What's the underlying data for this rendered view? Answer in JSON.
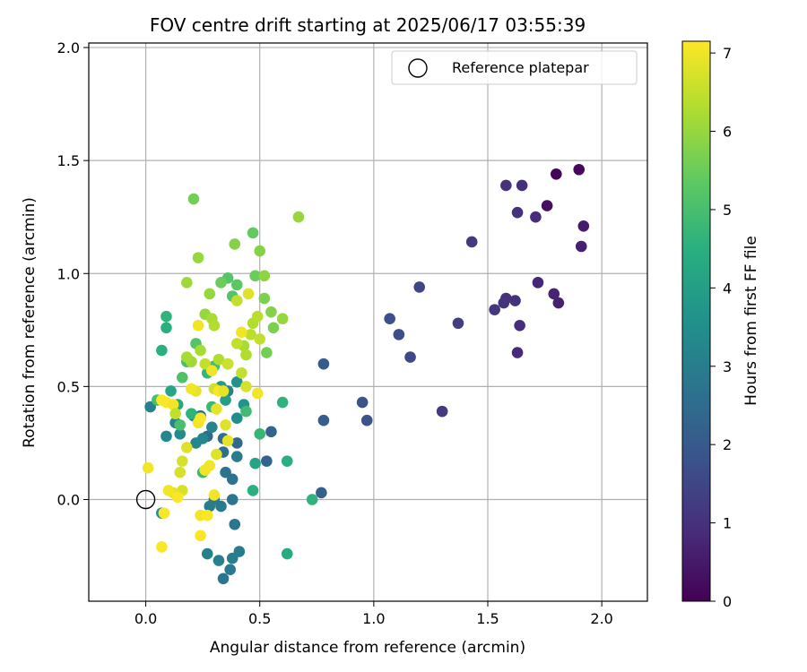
{
  "chart_data": {
    "type": "scatter",
    "title": "FOV centre drift starting at 2025/06/17 03:55:39",
    "xlabel": "Angular distance from reference (arcmin)",
    "ylabel": "Rotation from reference (arcmin)",
    "xlim": [
      -0.25,
      2.2
    ],
    "ylim": [
      -0.45,
      2.02
    ],
    "xticks": [
      0.0,
      0.5,
      1.0,
      1.5,
      2.0
    ],
    "yticks": [
      0.0,
      0.5,
      1.0,
      1.5,
      2.0
    ],
    "xtick_labels": [
      "0.0",
      "0.5",
      "1.0",
      "1.5",
      "2.0"
    ],
    "ytick_labels": [
      "0.0",
      "0.5",
      "1.0",
      "1.5",
      "2.0"
    ],
    "grid": true,
    "legend": {
      "placement": "top-right",
      "label": "Reference platepar"
    },
    "reference_point": {
      "x": 0.0,
      "y": 0.0
    },
    "colorbar": {
      "label": "Hours from first FF file",
      "range": [
        0,
        7.15
      ],
      "ticks": [
        0,
        1,
        2,
        3,
        4,
        5,
        6,
        7
      ],
      "tick_labels": [
        "0",
        "1",
        "2",
        "3",
        "4",
        "5",
        "6",
        "7"
      ],
      "colormap": "viridis"
    },
    "points": [
      [
        1.8,
        1.44,
        0.1
      ],
      [
        1.9,
        1.46,
        0.15
      ],
      [
        1.76,
        1.3,
        0.3
      ],
      [
        1.92,
        1.21,
        0.5
      ],
      [
        1.91,
        1.12,
        0.6
      ],
      [
        1.81,
        0.87,
        0.65
      ],
      [
        1.79,
        0.91,
        0.7
      ],
      [
        1.72,
        0.96,
        0.8
      ],
      [
        1.63,
        0.65,
        0.85
      ],
      [
        1.64,
        0.77,
        0.9
      ],
      [
        1.62,
        0.88,
        1.0
      ],
      [
        1.58,
        0.89,
        1.0
      ],
      [
        1.57,
        0.87,
        1.05
      ],
      [
        1.53,
        0.84,
        1.1
      ],
      [
        1.71,
        1.25,
        0.9
      ],
      [
        1.65,
        1.39,
        0.95
      ],
      [
        1.58,
        1.39,
        1.0
      ],
      [
        1.63,
        1.27,
        1.0
      ],
      [
        1.43,
        1.14,
        1.2
      ],
      [
        1.37,
        0.78,
        1.3
      ],
      [
        1.3,
        0.39,
        1.2
      ],
      [
        1.2,
        0.94,
        1.5
      ],
      [
        1.16,
        0.63,
        1.6
      ],
      [
        1.11,
        0.73,
        1.7
      ],
      [
        1.07,
        0.8,
        1.75
      ],
      [
        0.95,
        0.43,
        1.8
      ],
      [
        0.97,
        0.35,
        1.8
      ],
      [
        0.78,
        0.6,
        2.0
      ],
      [
        0.78,
        0.35,
        2.1
      ],
      [
        0.77,
        0.03,
        2.2
      ],
      [
        0.55,
        0.3,
        2.3
      ],
      [
        0.53,
        0.17,
        2.3
      ],
      [
        0.4,
        0.25,
        2.4
      ],
      [
        0.34,
        0.27,
        2.5
      ],
      [
        0.34,
        0.21,
        2.6
      ],
      [
        0.27,
        0.28,
        2.5
      ],
      [
        0.24,
        0.37,
        2.6
      ],
      [
        0.35,
        0.12,
        2.7
      ],
      [
        0.38,
        0.09,
        2.7
      ],
      [
        0.38,
        0.0,
        2.8
      ],
      [
        0.39,
        -0.11,
        2.8
      ],
      [
        0.33,
        -0.03,
        2.9
      ],
      [
        0.3,
        0.0,
        2.95
      ],
      [
        0.28,
        -0.03,
        3.0
      ],
      [
        0.34,
        -0.35,
        2.8
      ],
      [
        0.37,
        -0.31,
        2.9
      ],
      [
        0.41,
        -0.23,
        3.0
      ],
      [
        0.38,
        -0.26,
        3.0
      ],
      [
        0.32,
        -0.27,
        3.1
      ],
      [
        0.27,
        -0.24,
        3.1
      ],
      [
        0.4,
        0.19,
        3.0
      ],
      [
        0.36,
        0.48,
        3.1
      ],
      [
        0.29,
        0.32,
        3.2
      ],
      [
        0.25,
        0.27,
        3.3
      ],
      [
        0.22,
        0.25,
        3.3
      ],
      [
        0.13,
        0.34,
        3.2
      ],
      [
        0.09,
        0.28,
        3.3
      ],
      [
        0.15,
        0.29,
        3.4
      ],
      [
        0.02,
        0.41,
        3.1
      ],
      [
        0.07,
        -0.06,
        3.5
      ],
      [
        0.21,
        0.37,
        3.3
      ],
      [
        0.4,
        0.36,
        3.5
      ],
      [
        0.4,
        0.52,
        3.6
      ],
      [
        0.43,
        0.42,
        3.7
      ],
      [
        0.33,
        0.5,
        3.9
      ],
      [
        0.35,
        0.44,
        4.0
      ],
      [
        0.11,
        0.48,
        4.2
      ],
      [
        0.07,
        0.66,
        4.5
      ],
      [
        0.09,
        0.76,
        4.5
      ],
      [
        0.09,
        0.81,
        4.6
      ],
      [
        0.14,
        0.42,
        4.3
      ],
      [
        0.2,
        0.38,
        4.6
      ],
      [
        0.27,
        0.56,
        4.7
      ],
      [
        0.29,
        0.41,
        4.8
      ],
      [
        0.3,
        0.59,
        4.9
      ],
      [
        0.48,
        0.16,
        4.2
      ],
      [
        0.47,
        0.04,
        4.5
      ],
      [
        0.6,
        0.43,
        4.6
      ],
      [
        0.62,
        0.17,
        4.5
      ],
      [
        0.62,
        -0.24,
        4.4
      ],
      [
        0.73,
        0.0,
        4.6
      ],
      [
        0.5,
        0.29,
        4.7
      ],
      [
        0.44,
        0.39,
        4.9
      ],
      [
        0.25,
        0.12,
        4.8
      ],
      [
        0.15,
        0.33,
        5.0
      ],
      [
        0.05,
        0.44,
        5.0
      ],
      [
        0.18,
        0.61,
        5.0
      ],
      [
        0.16,
        0.54,
        5.1
      ],
      [
        0.22,
        0.69,
        5.2
      ],
      [
        0.36,
        0.6,
        5.0
      ],
      [
        0.38,
        0.9,
        5.2
      ],
      [
        0.4,
        0.95,
        5.3
      ],
      [
        0.36,
        0.98,
        5.2
      ],
      [
        0.33,
        0.96,
        5.5
      ],
      [
        0.47,
        1.18,
        5.4
      ],
      [
        0.48,
        0.99,
        5.5
      ],
      [
        0.5,
        1.1,
        5.8
      ],
      [
        0.52,
        0.99,
        5.9
      ],
      [
        0.52,
        0.89,
        5.7
      ],
      [
        0.53,
        0.65,
        5.6
      ],
      [
        0.56,
        0.76,
        5.7
      ],
      [
        0.55,
        0.83,
        5.8
      ],
      [
        0.6,
        0.8,
        6.0
      ],
      [
        0.67,
        1.25,
        6.0
      ],
      [
        0.39,
        1.13,
        5.8
      ],
      [
        0.28,
        0.91,
        6.0
      ],
      [
        0.26,
        0.82,
        6.0
      ],
      [
        0.2,
        0.61,
        6.1
      ],
      [
        0.18,
        0.63,
        6.2
      ],
      [
        0.24,
        0.66,
        6.2
      ],
      [
        0.29,
        0.8,
        6.2
      ],
      [
        0.3,
        0.77,
        6.3
      ],
      [
        0.32,
        0.62,
        6.3
      ],
      [
        0.43,
        0.68,
        6.2
      ],
      [
        0.44,
        0.64,
        6.3
      ],
      [
        0.47,
        0.78,
        6.3
      ],
      [
        0.49,
        0.81,
        6.4
      ],
      [
        0.46,
        0.73,
        6.4
      ],
      [
        0.5,
        0.71,
        6.5
      ],
      [
        0.42,
        0.56,
        6.5
      ],
      [
        0.44,
        0.5,
        6.7
      ],
      [
        0.4,
        0.69,
        6.5
      ],
      [
        0.26,
        0.6,
        6.5
      ],
      [
        0.3,
        0.49,
        6.6
      ],
      [
        0.35,
        0.33,
        6.8
      ],
      [
        0.36,
        0.26,
        6.9
      ],
      [
        0.31,
        0.4,
        6.9
      ],
      [
        0.31,
        0.2,
        6.8
      ],
      [
        0.22,
        0.48,
        6.9
      ],
      [
        0.2,
        0.49,
        7.0
      ],
      [
        0.18,
        0.23,
        6.8
      ],
      [
        0.16,
        0.17,
        6.7
      ],
      [
        0.15,
        0.12,
        6.7
      ],
      [
        0.16,
        0.04,
        6.7
      ],
      [
        0.12,
        0.03,
        6.9
      ],
      [
        0.1,
        0.04,
        7.0
      ],
      [
        0.08,
        -0.06,
        7.1
      ],
      [
        0.07,
        -0.21,
        7.1
      ],
      [
        0.01,
        0.14,
        7.0
      ],
      [
        0.09,
        0.43,
        7.1
      ],
      [
        0.12,
        0.42,
        7.0
      ],
      [
        0.07,
        0.44,
        7.1
      ],
      [
        0.14,
        0.01,
        7.1
      ],
      [
        0.24,
        -0.07,
        7.0
      ],
      [
        0.27,
        -0.07,
        7.1
      ],
      [
        0.24,
        -0.16,
        7.1
      ],
      [
        0.26,
        0.13,
        7.0
      ],
      [
        0.28,
        0.15,
        7.0
      ],
      [
        0.23,
        0.34,
        7.0
      ],
      [
        0.24,
        0.36,
        7.1
      ],
      [
        0.3,
        0.02,
        7.0
      ],
      [
        0.32,
        0.48,
        7.1
      ],
      [
        0.29,
        0.57,
        7.0
      ],
      [
        0.23,
        0.77,
        7.0
      ],
      [
        0.49,
        0.47,
        7.0
      ],
      [
        0.42,
        0.74,
        7.0
      ],
      [
        0.45,
        0.91,
        6.8
      ],
      [
        0.4,
        0.88,
        6.5
      ],
      [
        0.36,
        0.6,
        6.6
      ],
      [
        0.34,
        0.48,
        6.9
      ],
      [
        0.13,
        0.38,
        6.5
      ],
      [
        0.18,
        0.96,
        6.1
      ],
      [
        0.21,
        1.33,
        5.6
      ],
      [
        0.23,
        1.07,
        6.0
      ]
    ]
  }
}
